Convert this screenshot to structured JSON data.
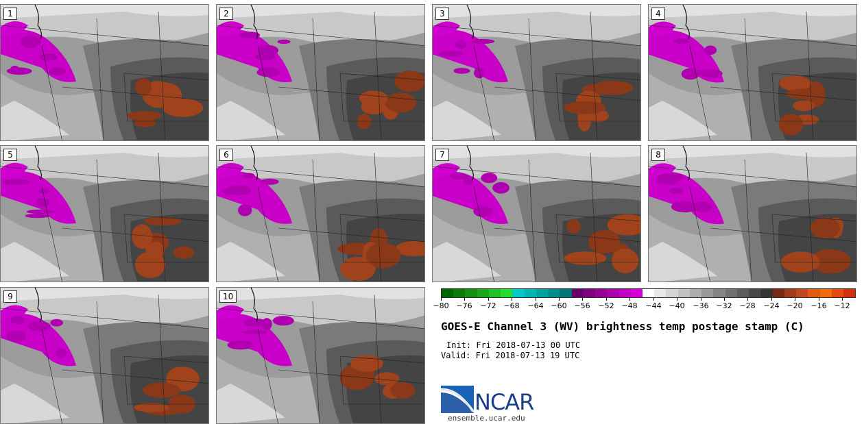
{
  "panels": [
    {
      "label": "1"
    },
    {
      "label": "2"
    },
    {
      "label": "3"
    },
    {
      "label": "4"
    },
    {
      "label": "5"
    },
    {
      "label": "6"
    },
    {
      "label": "7"
    },
    {
      "label": "8"
    },
    {
      "label": "9"
    },
    {
      "label": "10"
    }
  ],
  "colorbar": {
    "tick_labels": [
      "−80",
      "−76",
      "−72",
      "−68",
      "−64",
      "−60",
      "−56",
      "−52",
      "−48",
      "−44",
      "−40",
      "−36",
      "−32",
      "−28",
      "−24",
      "−20",
      "−16",
      "−12"
    ],
    "colors": [
      "#006400",
      "#0a7a0a",
      "#129012",
      "#1aa81a",
      "#22c022",
      "#2adc2a",
      "#00c8c8",
      "#00b4b4",
      "#00a0a0",
      "#008c8c",
      "#007878",
      "#6a006a",
      "#800080",
      "#960096",
      "#ac00ac",
      "#c200c2",
      "#d800d8",
      "#ffffff",
      "#e8e8e8",
      "#d4d4d4",
      "#c0c0c0",
      "#acacac",
      "#989898",
      "#848484",
      "#707070",
      "#5c5c5c",
      "#484848",
      "#343434",
      "#7a2a10",
      "#a03a18",
      "#c04a20",
      "#e05a10",
      "#f06a10",
      "#e04a10",
      "#d03010"
    ]
  },
  "title": "GOES-E Channel 3 (WV) brightness temp postage stamp (C)",
  "init": "Init: Fri 2018-07-13 00 UTC",
  "valid": "Valid: Fri 2018-07-13 19 UTC",
  "logo": {
    "text": "NCAR",
    "url_text": "ensemble.ucar.edu"
  }
}
